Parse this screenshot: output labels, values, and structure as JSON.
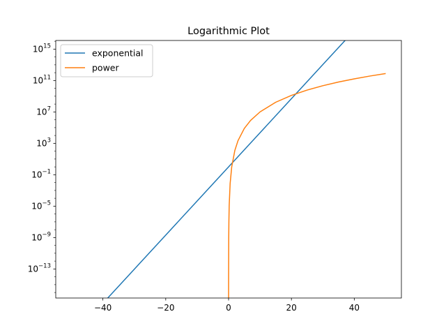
{
  "chart_data": {
    "type": "line",
    "title": "Logarithmic Plot",
    "xlabel": "",
    "ylabel": "",
    "yscale": "log",
    "xlim": [
      -55,
      55
    ],
    "ylim_exponent": [
      -16.7,
      16.1
    ],
    "grid": false,
    "legend": "top-left",
    "x_ticks": [
      -40,
      -20,
      0,
      20,
      40
    ],
    "x_tick_labels": [
      "−40",
      "−20",
      "0",
      "20",
      "40"
    ],
    "y_ticks_exponent": [
      -13,
      -9,
      -5,
      -1,
      3,
      7,
      11,
      15
    ],
    "y_tick_labels": [
      {
        "base": "10",
        "exp": "−13"
      },
      {
        "base": "10",
        "exp": "−9"
      },
      {
        "base": "10",
        "exp": "−5"
      },
      {
        "base": "10",
        "exp": "−1"
      },
      {
        "base": "10",
        "exp": "3"
      },
      {
        "base": "10",
        "exp": "7"
      },
      {
        "base": "10",
        "exp": "11"
      },
      {
        "base": "10",
        "exp": "15"
      }
    ],
    "series": [
      {
        "name": "exponential",
        "color": "#1f77b4",
        "x": [
          -50,
          -40,
          -30,
          -20,
          -10,
          0,
          10,
          20,
          30,
          40,
          50
        ],
        "y": [
          1.93e-22,
          4.25e-18,
          9.36e-14,
          2.06e-09,
          4.54e-05,
          1,
          22026,
          485000000.0,
          10700000000000.0,
          2.35e+17,
          5.18e+21
        ]
      },
      {
        "name": "power",
        "color": "#ff7f0e",
        "x": [
          0,
          0.001,
          0.01,
          0.05,
          0.1,
          0.2,
          0.5,
          1,
          2,
          3,
          5,
          7,
          10,
          15,
          20,
          25,
          30,
          35,
          40,
          45,
          50
        ],
        "y": [
          0,
          1e-21,
          1e-14,
          7.8e-10,
          1e-07,
          1.28e-05,
          0.0078,
          1,
          128,
          2187,
          78125,
          823543,
          10000000.0,
          171000000.0,
          1280000000.0,
          6100000000.0,
          21900000000.0,
          64300000000.0,
          164000000000.0,
          374000000000.0,
          781000000000.0
        ]
      }
    ]
  }
}
